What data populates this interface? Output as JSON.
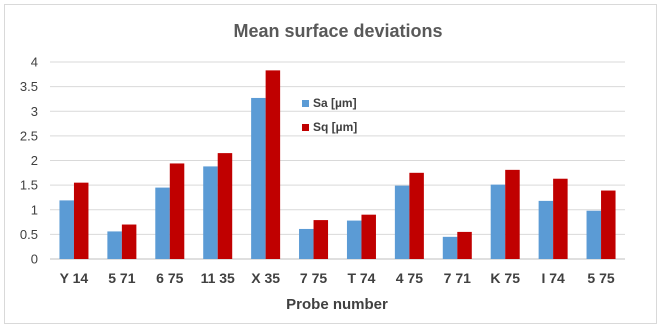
{
  "chart_data": {
    "type": "bar",
    "title": "Mean surface deviations",
    "xlabel": "Probe number",
    "ylabel": "",
    "ylim": [
      0,
      4
    ],
    "yticks": [
      "0",
      "0.5",
      "1",
      "1.5",
      "2",
      "2.5",
      "3",
      "3.5",
      "4"
    ],
    "grid": true,
    "legend_position": "top-center",
    "categories": [
      "Y 14",
      "5 71",
      "6 75",
      "11 35",
      "X 35",
      "7 75",
      "T 74",
      "4 75",
      "7 71",
      "K 75",
      "I 74",
      "5 75"
    ],
    "series": [
      {
        "name": "Sa [µm]",
        "color": "#5b9bd5",
        "values": [
          1.19,
          0.56,
          1.45,
          1.88,
          3.27,
          0.61,
          0.78,
          1.49,
          0.45,
          1.51,
          1.18,
          0.98
        ]
      },
      {
        "name": "Sq [µm]",
        "color": "#c00000",
        "values": [
          1.55,
          0.7,
          1.94,
          2.15,
          3.83,
          0.79,
          0.9,
          1.75,
          0.55,
          1.81,
          1.63,
          1.39
        ]
      }
    ]
  }
}
